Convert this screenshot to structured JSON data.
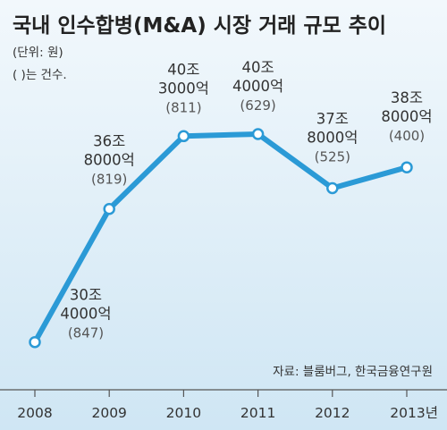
{
  "chart_data": {
    "type": "line",
    "title": "국내 인수합병(M&A) 시장 거래 규모 추이",
    "subtitle_unit": "(단위: 원)",
    "subtitle_note": "( )는 건수.",
    "source": "자료: 블룸버그, 한국금융연구원",
    "categories": [
      "2008",
      "2009",
      "2010",
      "2011",
      "2012",
      "2013년"
    ],
    "values": [
      304000,
      368000,
      403000,
      404000,
      378000,
      388000
    ],
    "point_labels": [
      {
        "line1": "30조",
        "line2": "4000억",
        "count": "(847)"
      },
      {
        "line1": "36조",
        "line2": "8000억",
        "count": "(819)"
      },
      {
        "line1": "40조",
        "line2": "3000억",
        "count": "(811)"
      },
      {
        "line1": "40조",
        "line2": "4000억",
        "count": "(629)"
      },
      {
        "line1": "37조",
        "line2": "8000억",
        "count": "(525)"
      },
      {
        "line1": "38조",
        "line2": "8000억",
        "count": "(400)"
      }
    ],
    "colors": {
      "background_top": "#f2f8fc",
      "background_bottom": "#cfe6f4",
      "line": "#2b9ad6",
      "title": "#222222",
      "text": "#333333",
      "count_text": "#555555"
    }
  }
}
